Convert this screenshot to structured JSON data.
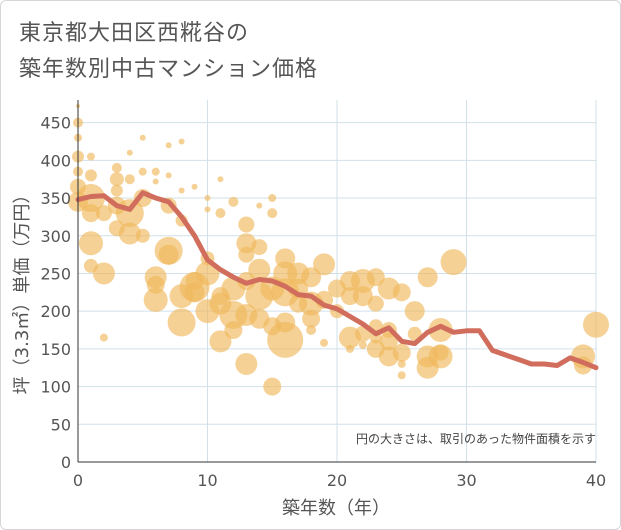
{
  "header": {
    "title_line1": "東京都大田区西糀谷の",
    "title_line2": "築年数別中古マンション価格"
  },
  "colors": {
    "bubble": "#f0b85c",
    "line": "#d06d5c",
    "grid": "#d2e0ea",
    "axis": "#333333"
  },
  "chart_data": {
    "type": "scatter",
    "xlabel": "築年数（年）",
    "ylabel": "坪（3.3㎡）単価（万円）",
    "xlim": [
      0,
      40
    ],
    "ylim": [
      0,
      480
    ],
    "xticks": [
      "0",
      "10",
      "20",
      "30",
      "40"
    ],
    "yticks": [
      "0",
      "50",
      "100",
      "150",
      "200",
      "250",
      "300",
      "350",
      "400",
      "450"
    ],
    "annotation": "円の大きさは、取引のあった物件面積を示す",
    "grid": true,
    "series": [
      {
        "type": "bubble",
        "points": [
          [
            0,
            472,
            2
          ],
          [
            0,
            450,
            5
          ],
          [
            0,
            430,
            4
          ],
          [
            0,
            405,
            6
          ],
          [
            0,
            385,
            5
          ],
          [
            0,
            365,
            8
          ],
          [
            0,
            345,
            10
          ],
          [
            1,
            405,
            4
          ],
          [
            1,
            380,
            6
          ],
          [
            1,
            350,
            14
          ],
          [
            1,
            330,
            9
          ],
          [
            1,
            290,
            12
          ],
          [
            1,
            260,
            7
          ],
          [
            2,
            250,
            11
          ],
          [
            2,
            165,
            4
          ],
          [
            2,
            330,
            8
          ],
          [
            3,
            390,
            5
          ],
          [
            3,
            375,
            7
          ],
          [
            3,
            360,
            6
          ],
          [
            3,
            340,
            9
          ],
          [
            3,
            310,
            8
          ],
          [
            4,
            410,
            3
          ],
          [
            4,
            375,
            5
          ],
          [
            4,
            330,
            14
          ],
          [
            4,
            303,
            11
          ],
          [
            5,
            430,
            3
          ],
          [
            5,
            385,
            4
          ],
          [
            5,
            350,
            9
          ],
          [
            5,
            300,
            7
          ],
          [
            6,
            385,
            4
          ],
          [
            6,
            372,
            3
          ],
          [
            6,
            245,
            11
          ],
          [
            6,
            215,
            12
          ],
          [
            6,
            235,
            9
          ],
          [
            7,
            420,
            3
          ],
          [
            7,
            380,
            3
          ],
          [
            7,
            340,
            8
          ],
          [
            7,
            280,
            14
          ],
          [
            7,
            275,
            10
          ],
          [
            8,
            425,
            3
          ],
          [
            8,
            360,
            3
          ],
          [
            8,
            320,
            6
          ],
          [
            8,
            220,
            12
          ],
          [
            8,
            185,
            14
          ],
          [
            9,
            365,
            3
          ],
          [
            9,
            232,
            15
          ],
          [
            9,
            225,
            10
          ],
          [
            9,
            240,
            9
          ],
          [
            10,
            350,
            3
          ],
          [
            10,
            335,
            3
          ],
          [
            10,
            270,
            7
          ],
          [
            10,
            250,
            12
          ],
          [
            10,
            200,
            12
          ],
          [
            11,
            375,
            3
          ],
          [
            11,
            330,
            5
          ],
          [
            11,
            210,
            11
          ],
          [
            11,
            160,
            11
          ],
          [
            11,
            220,
            9
          ],
          [
            12,
            345,
            5
          ],
          [
            12,
            230,
            12
          ],
          [
            12,
            195,
            14
          ],
          [
            12,
            175,
            9
          ],
          [
            13,
            315,
            8
          ],
          [
            13,
            290,
            10
          ],
          [
            13,
            275,
            8
          ],
          [
            13,
            240,
            9
          ],
          [
            13,
            195,
            11
          ],
          [
            13,
            130,
            11
          ],
          [
            14,
            285,
            8
          ],
          [
            14,
            255,
            11
          ],
          [
            14,
            220,
            14
          ],
          [
            14,
            190,
            10
          ],
          [
            14,
            340,
            3
          ],
          [
            15,
            350,
            4
          ],
          [
            15,
            330,
            5
          ],
          [
            15,
            230,
            12
          ],
          [
            15,
            180,
            9
          ],
          [
            15,
            100,
            9
          ],
          [
            16,
            270,
            10
          ],
          [
            16,
            250,
            12
          ],
          [
            16,
            225,
            14
          ],
          [
            16,
            185,
            10
          ],
          [
            16,
            162,
            18
          ],
          [
            17,
            250,
            11
          ],
          [
            17,
            230,
            10
          ],
          [
            17,
            210,
            9
          ],
          [
            18,
            245,
            10
          ],
          [
            18,
            210,
            12
          ],
          [
            18,
            190,
            9
          ],
          [
            18,
            175,
            5
          ],
          [
            19,
            262,
            11
          ],
          [
            19,
            215,
            9
          ],
          [
            19,
            158,
            4
          ],
          [
            20,
            230,
            9
          ],
          [
            20,
            200,
            7
          ],
          [
            21,
            240,
            10
          ],
          [
            21,
            220,
            9
          ],
          [
            21,
            165,
            11
          ],
          [
            21,
            150,
            4
          ],
          [
            22,
            240,
            12
          ],
          [
            22,
            220,
            10
          ],
          [
            22,
            170,
            8
          ],
          [
            22,
            155,
            4
          ],
          [
            23,
            245,
            9
          ],
          [
            23,
            210,
            8
          ],
          [
            23,
            180,
            7
          ],
          [
            23,
            165,
            6
          ],
          [
            23,
            150,
            9
          ],
          [
            24,
            230,
            11
          ],
          [
            24,
            175,
            8
          ],
          [
            24,
            160,
            9
          ],
          [
            24,
            140,
            10
          ],
          [
            25,
            225,
            9
          ],
          [
            25,
            145,
            9
          ],
          [
            25,
            130,
            4
          ],
          [
            25,
            115,
            4
          ],
          [
            26,
            200,
            10
          ],
          [
            26,
            170,
            7
          ],
          [
            27,
            245,
            10
          ],
          [
            27,
            140,
            11
          ],
          [
            27,
            125,
            11
          ],
          [
            28,
            175,
            12
          ],
          [
            28,
            145,
            8
          ],
          [
            28,
            140,
            12
          ],
          [
            29,
            265,
            13
          ],
          [
            39,
            140,
            12
          ],
          [
            39,
            128,
            9
          ],
          [
            40,
            182,
            13
          ]
        ]
      },
      {
        "type": "line",
        "name": "",
        "x": [
          0,
          1,
          2,
          3,
          4,
          5,
          6,
          7,
          8,
          9,
          10,
          11,
          12,
          13,
          14,
          15,
          16,
          17,
          18,
          19,
          20,
          21,
          22,
          23,
          24,
          25,
          26,
          27,
          28,
          29,
          30,
          31,
          32,
          33,
          34,
          35,
          36,
          37,
          38,
          39,
          40
        ],
        "y": [
          348,
          352,
          353,
          340,
          335,
          357,
          350,
          345,
          325,
          300,
          268,
          255,
          245,
          237,
          242,
          240,
          233,
          222,
          220,
          208,
          203,
          193,
          183,
          170,
          178,
          160,
          157,
          172,
          180,
          172,
          174,
          174,
          148,
          142,
          136,
          130,
          130,
          128,
          138,
          132,
          125
        ]
      }
    ]
  }
}
